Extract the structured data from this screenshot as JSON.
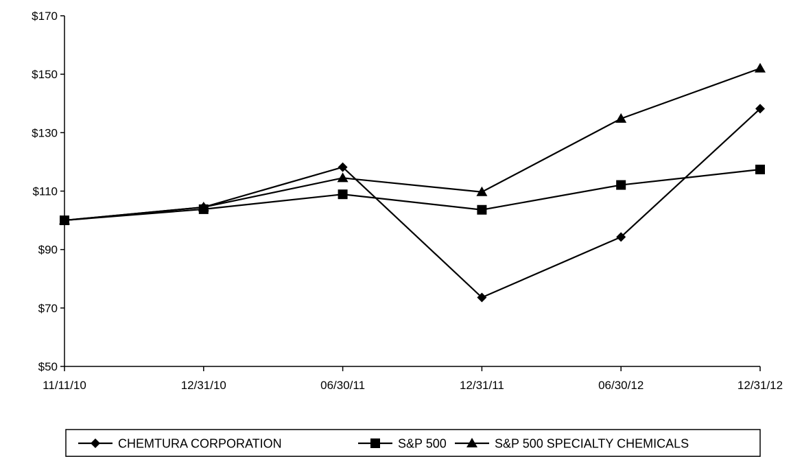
{
  "chart_data": {
    "type": "line",
    "title": "",
    "xlabel": "",
    "ylabel": "",
    "categories": [
      "11/11/10",
      "12/31/10",
      "06/30/11",
      "12/31/11",
      "06/30/12",
      "12/31/12"
    ],
    "y_ticks": [
      "$50",
      "$70",
      "$90",
      "$110",
      "$130",
      "$150",
      "$170"
    ],
    "ylim": [
      50,
      170
    ],
    "y_tick_step": 20,
    "grid": false,
    "legend_position": "bottom",
    "series": [
      {
        "name": "CHEMTURA CORPORATION",
        "marker": "diamond",
        "color": "#000000",
        "values": [
          100,
          104.5,
          118.2,
          73.6,
          94.3,
          138.2
        ]
      },
      {
        "name": "S&P 500",
        "marker": "square",
        "color": "#000000",
        "values": [
          100,
          103.8,
          108.9,
          103.6,
          112.1,
          117.4
        ]
      },
      {
        "name": "S&P 500 SPECIALTY CHEMICALS",
        "marker": "triangle",
        "color": "#000000",
        "values": [
          100,
          104.5,
          114.5,
          109.7,
          134.8,
          152.0
        ]
      }
    ]
  }
}
